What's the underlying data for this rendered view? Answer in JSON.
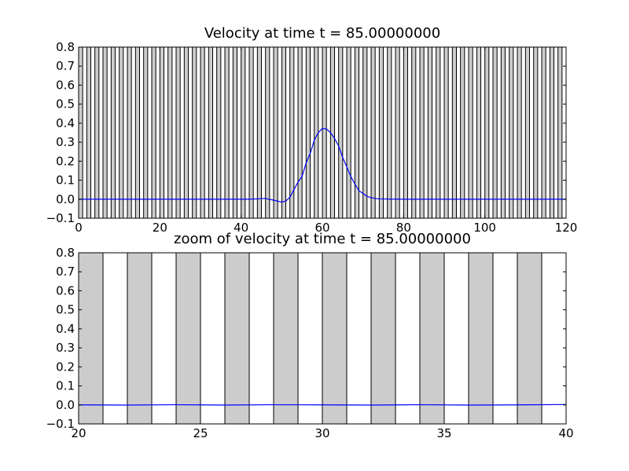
{
  "chart_data": [
    {
      "type": "line",
      "title": "Velocity at time t =    85.00000000",
      "xlabel": "",
      "ylabel": "",
      "xlim": [
        0,
        120
      ],
      "ylim": [
        -0.1,
        0.8
      ],
      "xticks": [
        0,
        20,
        40,
        60,
        80,
        100,
        120
      ],
      "xtick_labels": [
        "0",
        "20",
        "40",
        "60",
        "80",
        "100",
        "120"
      ],
      "yticks": [
        -0.1,
        0.0,
        0.1,
        0.2,
        0.3,
        0.4,
        0.5,
        0.6,
        0.7,
        0.8
      ],
      "ytick_labels": [
        "−0.1",
        "0.0",
        "0.1",
        "0.2",
        "0.3",
        "0.4",
        "0.5",
        "0.6",
        "0.7",
        "0.8"
      ],
      "grid": false,
      "background_bands": {
        "color": "#cccccc",
        "period": 2,
        "width": 1,
        "start": 0,
        "end": 120,
        "ymin": -0.1,
        "ymax": 0.8
      },
      "series": [
        {
          "color": "#0000ff",
          "x": [
            0,
            10,
            20,
            30,
            40,
            42,
            44,
            46,
            48,
            50,
            51,
            52,
            53,
            54,
            55,
            56,
            57,
            58,
            59,
            60,
            61,
            62,
            63,
            64,
            65,
            66,
            67,
            68,
            69,
            70,
            71,
            72,
            73,
            74,
            76,
            80,
            90,
            100,
            110,
            120
          ],
          "y": [
            0,
            0,
            0,
            0,
            0,
            0,
            0.002,
            0.004,
            -0.005,
            -0.015,
            -0.01,
            0.01,
            0.05,
            0.09,
            0.12,
            0.19,
            0.24,
            0.31,
            0.35,
            0.372,
            0.37,
            0.35,
            0.32,
            0.28,
            0.22,
            0.17,
            0.12,
            0.08,
            0.045,
            0.03,
            0.015,
            0.008,
            0.004,
            0.002,
            0.001,
            0,
            0,
            0,
            0,
            0
          ]
        }
      ]
    },
    {
      "type": "line",
      "title": "zoom of velocity at time t =    85.00000000",
      "xlabel": "",
      "ylabel": "",
      "xlim": [
        20,
        40
      ],
      "ylim": [
        -0.1,
        0.8
      ],
      "xticks": [
        20,
        25,
        30,
        35,
        40
      ],
      "xtick_labels": [
        "20",
        "25",
        "30",
        "35",
        "40"
      ],
      "yticks": [
        -0.1,
        0.0,
        0.1,
        0.2,
        0.3,
        0.4,
        0.5,
        0.6,
        0.7,
        0.8
      ],
      "ytick_labels": [
        "−0.1",
        "0.0",
        "0.1",
        "0.2",
        "0.3",
        "0.4",
        "0.5",
        "0.6",
        "0.7",
        "0.8"
      ],
      "grid": false,
      "background_bands": {
        "color": "#cccccc",
        "period": 2,
        "width": 1,
        "start": 20,
        "end": 40,
        "ymin": -0.1,
        "ymax": 0.8
      },
      "series": [
        {
          "color": "#0000ff",
          "x": [
            20,
            22,
            24,
            26,
            28,
            30,
            32,
            34,
            36,
            38,
            40
          ],
          "y": [
            0.0,
            -0.001,
            0.001,
            -0.001,
            0.001,
            0.0,
            -0.001,
            0.001,
            -0.001,
            0.0,
            0.002
          ]
        }
      ]
    }
  ]
}
